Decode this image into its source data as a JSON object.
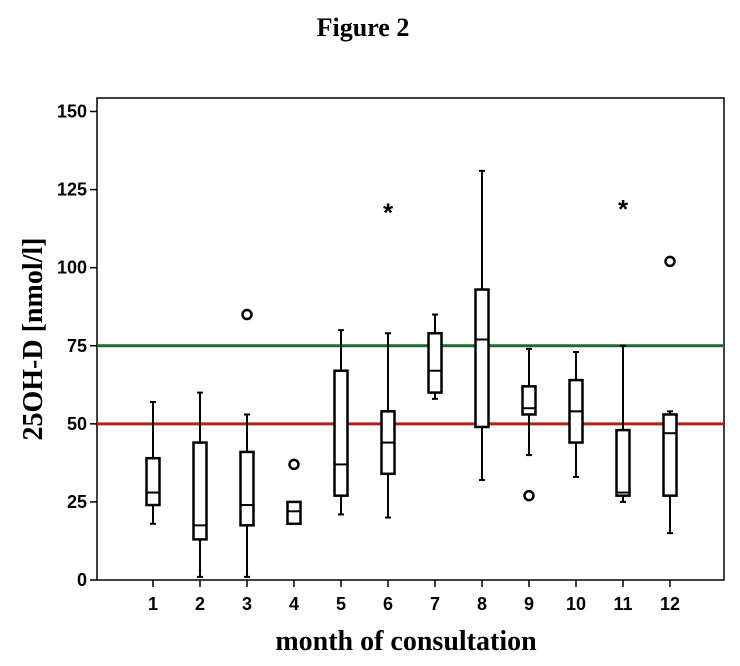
{
  "chart_data": {
    "type": "boxplot",
    "title": "Figure 2",
    "xlabel": "month of consultation",
    "ylabel": "25OH-D [nmol/l]",
    "ylim": [
      0,
      150
    ],
    "yticks": [
      0,
      25,
      50,
      75,
      100,
      125,
      150
    ],
    "categories": [
      "1",
      "2",
      "3",
      "4",
      "5",
      "6",
      "7",
      "8",
      "9",
      "10",
      "11",
      "12"
    ],
    "reference_lines": [
      {
        "value": 75,
        "color": "#1e6b2e"
      },
      {
        "value": 50,
        "color": "#b5201f"
      }
    ],
    "boxes": [
      {
        "month": "1",
        "whisker_low": 18,
        "q1": 24,
        "median": 28,
        "q3": 39,
        "whisker_high": 57,
        "outliers": [],
        "extremes": []
      },
      {
        "month": "2",
        "whisker_low": 1,
        "q1": 13,
        "median": 17.5,
        "q3": 44,
        "whisker_high": 60,
        "outliers": [],
        "extremes": []
      },
      {
        "month": "3",
        "whisker_low": 1,
        "q1": 17.5,
        "median": 24,
        "q3": 41,
        "whisker_high": 53,
        "outliers": [
          85
        ],
        "extremes": []
      },
      {
        "month": "4",
        "whisker_low": 18,
        "q1": 18,
        "median": 22,
        "q3": 25,
        "whisker_high": 25,
        "outliers": [
          37
        ],
        "extremes": []
      },
      {
        "month": "5",
        "whisker_low": 21,
        "q1": 27,
        "median": 37,
        "q3": 67,
        "whisker_high": 80,
        "outliers": [],
        "extremes": []
      },
      {
        "month": "6",
        "whisker_low": 20,
        "q1": 34,
        "median": 44,
        "q3": 54,
        "whisker_high": 79,
        "outliers": [],
        "extremes": [
          119
        ]
      },
      {
        "month": "7",
        "whisker_low": 58,
        "q1": 60,
        "median": 67,
        "q3": 79,
        "whisker_high": 85,
        "outliers": [],
        "extremes": []
      },
      {
        "month": "8",
        "whisker_low": 32,
        "q1": 49,
        "median": 77,
        "q3": 93,
        "whisker_high": 131,
        "outliers": [],
        "extremes": []
      },
      {
        "month": "9",
        "whisker_low": 40,
        "q1": 53,
        "median": 55,
        "q3": 62,
        "whisker_high": 74,
        "outliers": [
          27
        ],
        "extremes": []
      },
      {
        "month": "10",
        "whisker_low": 33,
        "q1": 44,
        "median": 54,
        "q3": 64,
        "whisker_high": 73,
        "outliers": [],
        "extremes": []
      },
      {
        "month": "11",
        "whisker_low": 25,
        "q1": 27,
        "median": 28,
        "q3": 48,
        "whisker_high": 75,
        "outliers": [],
        "extremes": [
          120
        ]
      },
      {
        "month": "12",
        "whisker_low": 15,
        "q1": 27,
        "median": 47,
        "q3": 53,
        "whisker_high": 54,
        "outliers": [
          102
        ],
        "extremes": []
      }
    ]
  }
}
